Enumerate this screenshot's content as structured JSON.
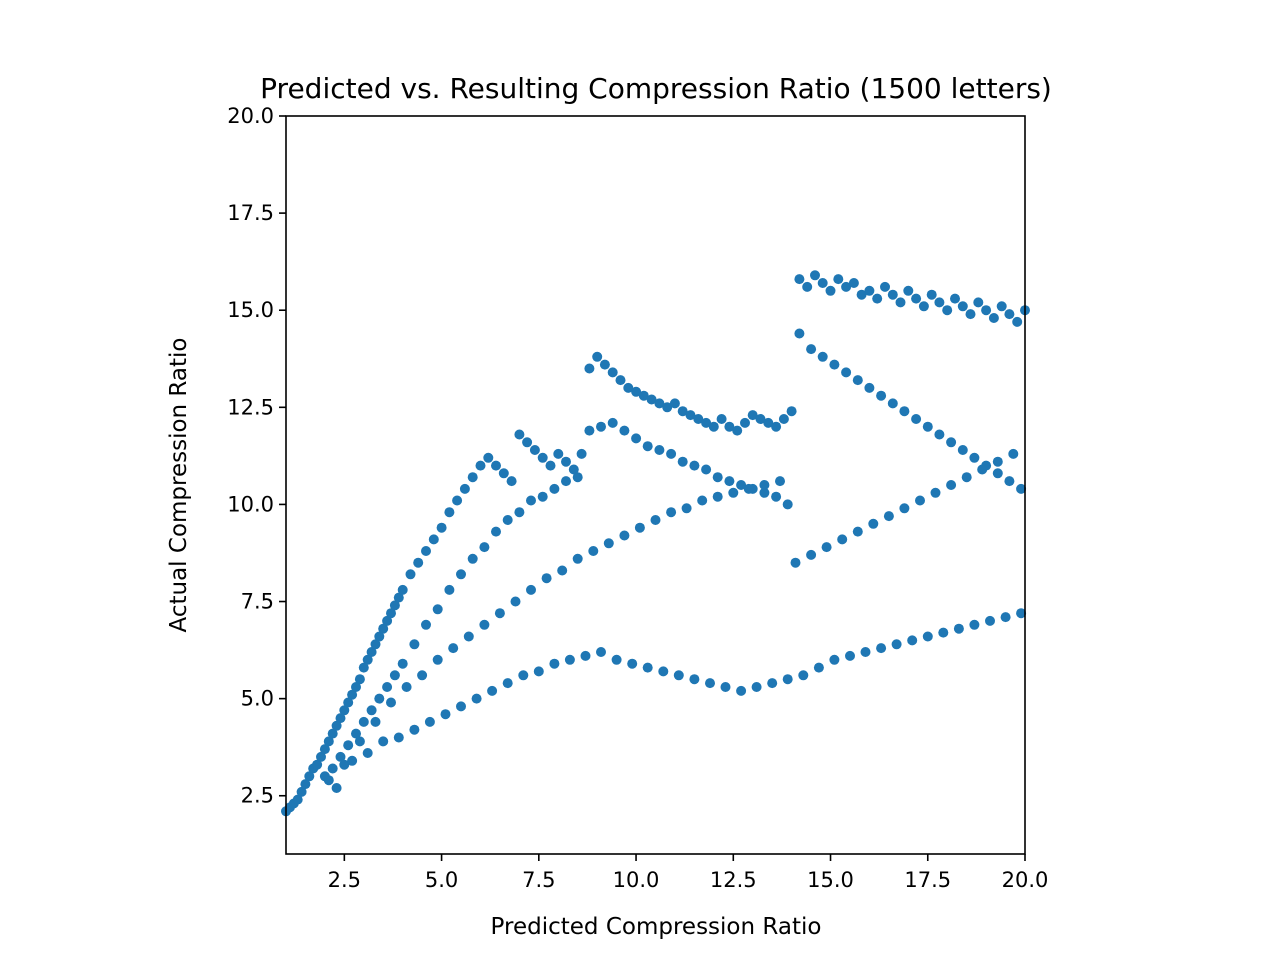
{
  "chart_data": {
    "type": "scatter",
    "title": "Predicted vs. Resulting Compression Ratio (1500 letters)",
    "xlabel": "Predicted Compression Ratio",
    "ylabel": "Actual Compression Ratio",
    "xlim": [
      1.0,
      20.0
    ],
    "ylim": [
      1.0,
      20.0
    ],
    "xticks": [
      2.5,
      5.0,
      7.5,
      10.0,
      12.5,
      15.0,
      17.5,
      20.0
    ],
    "xtick_labels": [
      "2.5",
      "5.0",
      "7.5",
      "10.0",
      "12.5",
      "15.0",
      "17.5",
      "20.0"
    ],
    "yticks": [
      2.5,
      5.0,
      7.5,
      10.0,
      12.5,
      15.0,
      17.5,
      20.0
    ],
    "ytick_labels": [
      "2.5",
      "5.0",
      "7.5",
      "10.0",
      "12.5",
      "15.0",
      "17.5",
      "20.0"
    ],
    "grid": false,
    "marker_color": "#1f77b4",
    "series": [
      {
        "x": [
          1.0,
          1.1,
          1.2,
          1.3,
          1.4,
          1.5,
          1.6,
          1.7,
          1.8,
          1.9,
          2.0,
          2.1,
          2.2,
          2.3,
          2.4,
          2.5,
          2.6,
          2.7,
          2.8,
          2.9,
          3.0,
          3.1,
          3.2,
          3.3,
          3.4,
          3.5,
          3.6,
          3.7,
          3.8,
          3.9,
          4.0,
          4.2,
          4.4,
          4.6,
          4.8,
          5.0,
          5.2,
          5.4,
          5.6,
          5.8,
          6.0,
          6.2,
          6.4,
          6.6,
          6.8,
          7.0,
          7.2,
          7.4,
          7.6,
          7.8,
          8.0,
          8.2,
          8.4,
          8.6,
          8.8,
          9.0,
          9.2,
          9.4,
          9.6,
          9.8,
          10.0,
          10.2,
          10.4,
          10.6,
          10.8,
          11.0,
          11.2,
          11.4,
          11.6,
          11.8,
          12.0,
          12.2,
          12.4,
          12.6,
          12.8,
          13.0,
          13.2,
          13.4,
          13.6,
          13.8,
          14.0,
          14.2,
          14.4,
          14.6,
          14.8,
          15.0,
          15.2,
          15.4,
          15.6,
          15.8,
          16.0,
          16.2,
          16.4,
          16.6,
          16.8,
          17.0,
          17.2,
          17.4,
          17.6,
          17.8,
          18.0,
          18.2,
          18.4,
          18.6,
          18.8,
          19.0,
          19.2,
          19.4,
          19.6,
          19.8,
          20.0,
          2.0,
          2.2,
          2.4,
          2.6,
          2.8,
          3.0,
          3.2,
          3.4,
          3.6,
          3.8,
          4.0,
          4.3,
          4.6,
          4.9,
          5.2,
          5.5,
          5.8,
          6.1,
          6.4,
          6.7,
          7.0,
          7.3,
          7.6,
          7.9,
          8.2,
          8.5,
          8.8,
          9.1,
          9.4,
          9.7,
          10.0,
          10.3,
          10.6,
          10.9,
          11.2,
          11.5,
          11.8,
          12.1,
          12.4,
          12.7,
          13.0,
          13.3,
          13.6,
          13.9,
          14.2,
          14.5,
          14.8,
          15.1,
          15.4,
          15.7,
          16.0,
          16.3,
          16.6,
          16.9,
          17.2,
          17.5,
          17.8,
          18.1,
          18.4,
          18.7,
          19.0,
          19.3,
          19.6,
          19.9,
          2.1,
          2.5,
          2.9,
          3.3,
          3.7,
          4.1,
          4.5,
          4.9,
          5.3,
          5.7,
          6.1,
          6.5,
          6.9,
          7.3,
          7.7,
          8.1,
          8.5,
          8.9,
          9.3,
          9.7,
          10.1,
          10.5,
          10.9,
          11.3,
          11.7,
          12.1,
          12.5,
          12.9,
          13.3,
          13.7,
          14.1,
          14.5,
          14.9,
          15.3,
          15.7,
          16.1,
          16.5,
          16.9,
          17.3,
          17.7,
          18.1,
          18.5,
          18.9,
          19.3,
          19.7,
          2.3,
          2.7,
          3.1,
          3.5,
          3.9,
          4.3,
          4.7,
          5.1,
          5.5,
          5.9,
          6.3,
          6.7,
          7.1,
          7.5,
          7.9,
          8.3,
          8.7,
          9.1,
          9.5,
          9.9,
          10.3,
          10.7,
          11.1,
          11.5,
          11.9,
          12.3,
          12.7,
          13.1,
          13.5,
          13.9,
          14.3,
          14.7,
          15.1,
          15.5,
          15.9,
          16.3,
          16.7,
          17.1,
          17.5,
          17.9,
          18.3,
          18.7,
          19.1,
          19.5,
          19.9
        ],
        "y": [
          2.1,
          2.2,
          2.3,
          2.4,
          2.6,
          2.8,
          3.0,
          3.2,
          3.3,
          3.5,
          3.7,
          3.9,
          4.1,
          4.3,
          4.5,
          4.7,
          4.9,
          5.1,
          5.3,
          5.5,
          5.8,
          6.0,
          6.2,
          6.4,
          6.6,
          6.8,
          7.0,
          7.2,
          7.4,
          7.6,
          7.8,
          8.2,
          8.5,
          8.8,
          9.1,
          9.4,
          9.8,
          10.1,
          10.4,
          10.7,
          11.0,
          11.2,
          11.0,
          10.8,
          10.6,
          11.8,
          11.6,
          11.4,
          11.2,
          11.0,
          11.3,
          11.1,
          10.9,
          11.3,
          13.5,
          13.8,
          13.6,
          13.4,
          13.2,
          13.0,
          12.9,
          12.8,
          12.7,
          12.6,
          12.5,
          12.6,
          12.4,
          12.3,
          12.2,
          12.1,
          12.0,
          12.2,
          12.0,
          11.9,
          12.1,
          12.3,
          12.2,
          12.1,
          12.0,
          12.2,
          12.4,
          15.8,
          15.6,
          15.9,
          15.7,
          15.5,
          15.8,
          15.6,
          15.7,
          15.4,
          15.5,
          15.3,
          15.6,
          15.4,
          15.2,
          15.5,
          15.3,
          15.1,
          15.4,
          15.2,
          15.0,
          15.3,
          15.1,
          14.9,
          15.2,
          15.0,
          14.8,
          15.1,
          14.9,
          14.7,
          15.0,
          3.0,
          3.2,
          3.5,
          3.8,
          4.1,
          4.4,
          4.7,
          5.0,
          5.3,
          5.6,
          5.9,
          6.4,
          6.9,
          7.3,
          7.8,
          8.2,
          8.6,
          8.9,
          9.3,
          9.6,
          9.8,
          10.1,
          10.2,
          10.4,
          10.6,
          10.7,
          11.9,
          12.0,
          12.1,
          11.9,
          11.7,
          11.5,
          11.4,
          11.3,
          11.1,
          11.0,
          10.9,
          10.7,
          10.6,
          10.5,
          10.4,
          10.3,
          10.2,
          10.0,
          14.4,
          14.0,
          13.8,
          13.6,
          13.4,
          13.2,
          13.0,
          12.8,
          12.6,
          12.4,
          12.2,
          12.0,
          11.8,
          11.6,
          11.4,
          11.2,
          11.0,
          10.8,
          10.6,
          10.4,
          2.9,
          3.3,
          3.9,
          4.4,
          4.9,
          5.3,
          5.6,
          6.0,
          6.3,
          6.6,
          6.9,
          7.2,
          7.5,
          7.8,
          8.1,
          8.3,
          8.6,
          8.8,
          9.0,
          9.2,
          9.4,
          9.6,
          9.8,
          9.9,
          10.1,
          10.2,
          10.3,
          10.4,
          10.5,
          10.6,
          8.5,
          8.7,
          8.9,
          9.1,
          9.3,
          9.5,
          9.7,
          9.9,
          10.1,
          10.3,
          10.5,
          10.7,
          10.9,
          11.1,
          11.3,
          2.7,
          3.4,
          3.6,
          3.9,
          4.0,
          4.2,
          4.4,
          4.6,
          4.8,
          5.0,
          5.2,
          5.4,
          5.6,
          5.7,
          5.9,
          6.0,
          6.1,
          6.2,
          6.0,
          5.9,
          5.8,
          5.7,
          5.6,
          5.5,
          5.4,
          5.3,
          5.2,
          5.3,
          5.4,
          5.5,
          5.6,
          5.8,
          6.0,
          6.1,
          6.2,
          6.3,
          6.4,
          6.5,
          6.6,
          6.7,
          6.8,
          6.9,
          7.0,
          7.1,
          7.2
        ]
      }
    ]
  }
}
